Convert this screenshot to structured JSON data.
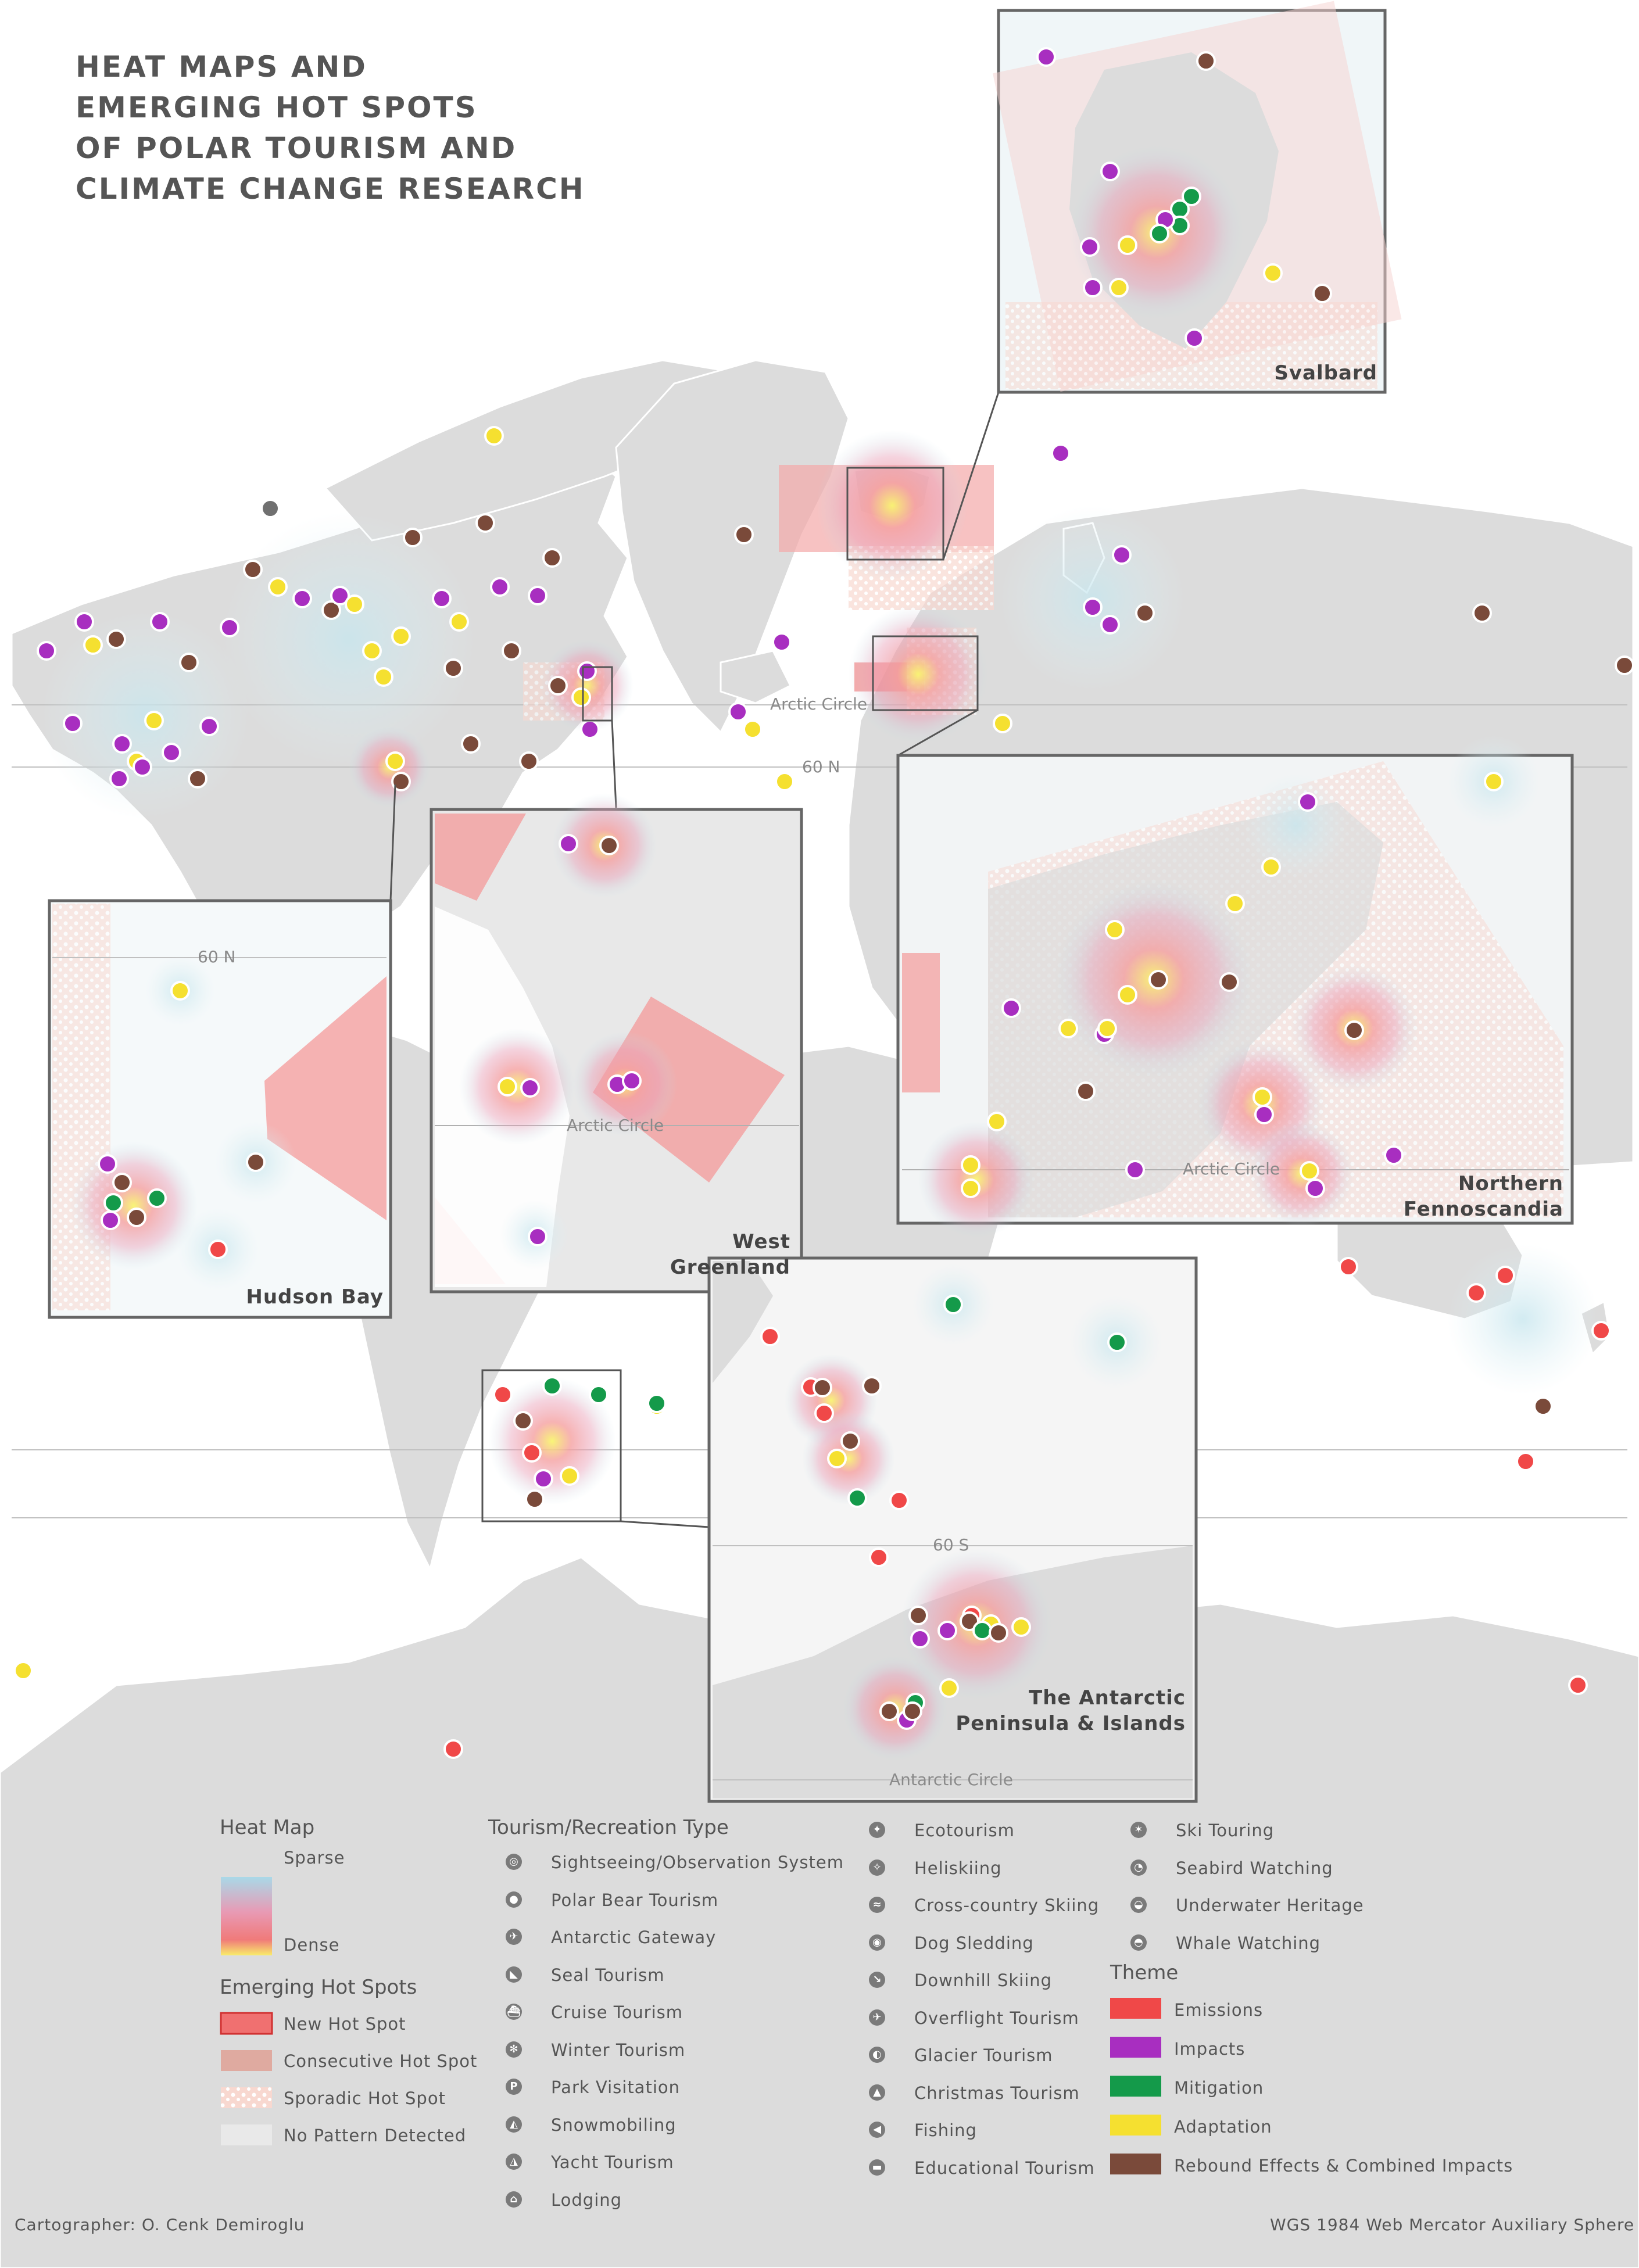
{
  "title": {
    "lines": [
      "HEAT MAPS AND",
      "EMERGING HOT SPOTS",
      "OF POLAR TOURISM AND",
      "CLIMATE CHANGE RESEARCH"
    ]
  },
  "insets": {
    "svalbard": "Svalbard",
    "hudson_bay": "Hudson Bay",
    "west_greenland_1": "West",
    "west_greenland_2": "Greenland",
    "fennoscandia_1": "Northern",
    "fennoscandia_2": "Fennoscandia",
    "antarctic_1": "The Antarctic",
    "antarctic_2": "Peninsula & Islands"
  },
  "geo_labels": {
    "arctic_circle": "Arctic Circle",
    "lat_60n": "60 N",
    "lat_60s": "60 S",
    "antarctic_circle": "Antarctic Circle"
  },
  "legend": {
    "heat_map": {
      "heading": "Heat Map",
      "sparse": "Sparse",
      "dense": "Dense"
    },
    "hot_spots": {
      "heading": "Emerging Hot Spots",
      "items": [
        "New Hot Spot",
        "Consecutive Hot Spot",
        "Sporadic Hot Spot",
        "No Pattern Detected"
      ]
    },
    "tourism": {
      "heading": "Tourism/Recreation Type",
      "col1": [
        {
          "label": "Sightseeing/Observation System",
          "icon": "camera-icon",
          "glyph": "◎"
        },
        {
          "label": "Polar Bear Tourism",
          "icon": "polar-bear-icon",
          "glyph": "●"
        },
        {
          "label": "Antarctic Gateway",
          "icon": "plane-icon",
          "glyph": "✈"
        },
        {
          "label": "Seal Tourism",
          "icon": "seal-icon",
          "glyph": "◣"
        },
        {
          "label": "Cruise Tourism",
          "icon": "ship-icon",
          "glyph": "⛴"
        },
        {
          "label": "Winter Tourism",
          "icon": "snowflake-icon",
          "glyph": "✻"
        },
        {
          "label": "Park Visitation",
          "icon": "park-icon",
          "glyph": "P"
        },
        {
          "label": "Snowmobiling",
          "icon": "snowmobile-icon",
          "glyph": "◭"
        },
        {
          "label": "Yacht Tourism",
          "icon": "yacht-icon",
          "glyph": "◮"
        },
        {
          "label": "Lodging",
          "icon": "lodging-icon",
          "glyph": "⌂"
        }
      ],
      "col2": [
        {
          "label": "Ecotourism",
          "icon": "hiker-icon",
          "glyph": "✦"
        },
        {
          "label": "Heliskiing",
          "icon": "helicopter-icon",
          "glyph": "✧"
        },
        {
          "label": "Cross-country Skiing",
          "icon": "xc-ski-icon",
          "glyph": "≈"
        },
        {
          "label": "Dog Sledding",
          "icon": "dog-icon",
          "glyph": "◉"
        },
        {
          "label": "Downhill Skiing",
          "icon": "downhill-ski-icon",
          "glyph": "↘"
        },
        {
          "label": "Overflight Tourism",
          "icon": "overflight-icon",
          "glyph": "✈"
        },
        {
          "label": "Glacier Tourism",
          "icon": "glacier-icon",
          "glyph": "◐"
        },
        {
          "label": "Christmas Tourism",
          "icon": "tree-icon",
          "glyph": "▲"
        },
        {
          "label": "Fishing",
          "icon": "fish-icon",
          "glyph": "◀"
        },
        {
          "label": "Educational Tourism",
          "icon": "education-icon",
          "glyph": "▬"
        }
      ],
      "col3": [
        {
          "label": "Ski Touring",
          "icon": "ski-touring-icon",
          "glyph": "✶"
        },
        {
          "label": "Seabird Watching",
          "icon": "bird-icon",
          "glyph": "◔"
        },
        {
          "label": "Underwater Heritage",
          "icon": "diver-icon",
          "glyph": "◒"
        },
        {
          "label": "Whale Watching",
          "icon": "whale-icon",
          "glyph": "◓"
        }
      ]
    },
    "theme": {
      "heading": "Theme",
      "items": [
        {
          "label": "Emissions",
          "color": "#f04848"
        },
        {
          "label": "Impacts",
          "color": "#a82ec0"
        },
        {
          "label": "Mitigation",
          "color": "#149a4a"
        },
        {
          "label": "Adaptation",
          "color": "#f5e030"
        },
        {
          "label": "Rebound Effects & Combined Impacts",
          "color": "#7a4a3a"
        }
      ]
    }
  },
  "footer": {
    "cartographer": "Cartographer: O. Cenk Demiroglu",
    "projection": "WGS 1984 Web Mercator Auxiliary Sphere"
  }
}
